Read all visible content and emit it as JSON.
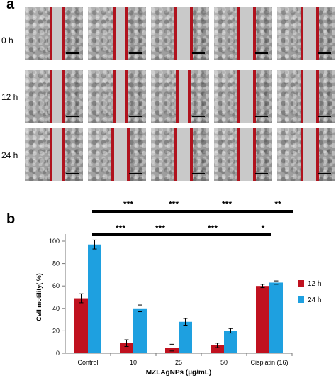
{
  "panel_a": {
    "letter": "a",
    "rows": [
      "0 h",
      "12 h",
      "24 h"
    ]
  },
  "panel_b": {
    "letter": "b",
    "significance_row1": [
      "***",
      "***",
      "***",
      "**"
    ],
    "significance_row2": [
      "***",
      "***",
      "***",
      "*"
    ]
  },
  "colors": {
    "h12": "#c0111f",
    "h24": "#1ea0e0",
    "line": "#b0131e"
  },
  "chart_data": {
    "type": "bar",
    "categories": [
      "Control",
      "10",
      "25",
      "50",
      "Cisplatin (16)"
    ],
    "series": [
      {
        "name": "12 h",
        "values": [
          49,
          9,
          5,
          7,
          60
        ],
        "errors": [
          4,
          3,
          3,
          2,
          1.5
        ]
      },
      {
        "name": "24 h",
        "values": [
          97,
          40,
          28,
          20,
          63
        ],
        "errors": [
          4,
          3,
          3,
          2,
          1.5
        ]
      }
    ],
    "xlabel": "MZLAgNPs (µg/mL)",
    "ylabel": "Cell motility( %)",
    "ylim": [
      0,
      100
    ],
    "yticks": [
      0,
      20,
      40,
      60,
      80,
      100
    ],
    "legend_position": "right"
  }
}
